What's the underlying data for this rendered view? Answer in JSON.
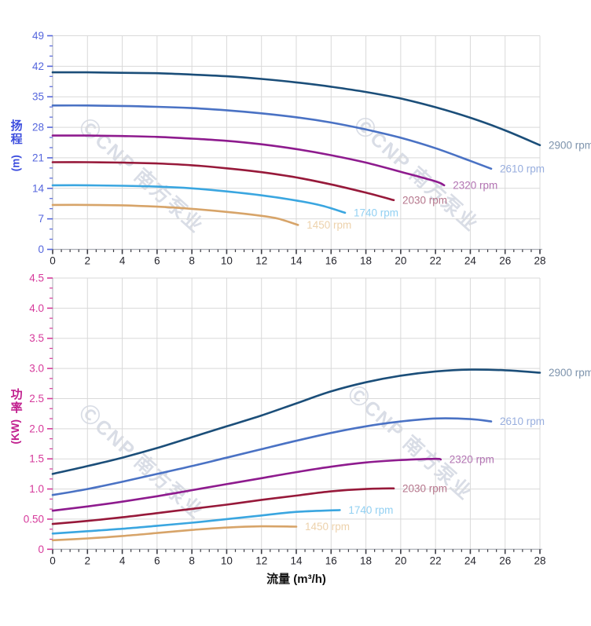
{
  "watermark": {
    "text": "ⒸCNP 南方泵业",
    "color": "rgba(164,175,196,0.42)"
  },
  "chart_data": [
    {
      "type": "line",
      "name": "head-vs-flow",
      "y_title": "扬程",
      "y_unit": "(m)",
      "xlabel": "",
      "xlim": [
        0,
        28
      ],
      "ylim": [
        0,
        49
      ],
      "x_major_step": 2,
      "y_major_step": 7,
      "grid": true,
      "legend_position": "curve-end-labels",
      "x_tick_labels": [
        "0",
        "2",
        "4",
        "6",
        "8",
        "10",
        "12",
        "14",
        "16",
        "18",
        "20",
        "22",
        "24",
        "26",
        "28"
      ],
      "y_tick_labels": [
        "0",
        "7",
        "14",
        "21",
        "28",
        "35",
        "42",
        "49"
      ],
      "y_tick_color": "#5566dd",
      "y_title_color": "#3d4ede",
      "x_tick_color": "#26262e",
      "series": [
        {
          "name": "2900 rpm",
          "color": "#1b4e79",
          "label_color": "#7d93ac",
          "points": [
            [
              0,
              40.6
            ],
            [
              2,
              40.6
            ],
            [
              4,
              40.5
            ],
            [
              6,
              40.4
            ],
            [
              8,
              40.1
            ],
            [
              10,
              39.7
            ],
            [
              12,
              39.1
            ],
            [
              14,
              38.3
            ],
            [
              16,
              37.3
            ],
            [
              18,
              36.1
            ],
            [
              20,
              34.6
            ],
            [
              22,
              32.6
            ],
            [
              24,
              30.2
            ],
            [
              26,
              27.3
            ],
            [
              28,
              23.9
            ]
          ]
        },
        {
          "name": "2610 rpm",
          "color": "#4a72c4",
          "label_color": "#98aede",
          "points": [
            [
              0,
              33.0
            ],
            [
              2,
              33.0
            ],
            [
              4,
              32.9
            ],
            [
              6,
              32.7
            ],
            [
              8,
              32.4
            ],
            [
              10,
              31.9
            ],
            [
              12,
              31.2
            ],
            [
              14,
              30.3
            ],
            [
              16,
              29.1
            ],
            [
              18,
              27.5
            ],
            [
              20,
              25.6
            ],
            [
              22,
              23.2
            ],
            [
              24,
              20.3
            ],
            [
              25.2,
              18.5
            ]
          ]
        },
        {
          "name": "2320 rpm",
          "color": "#8e1b8e",
          "label_color": "#b273b2",
          "points": [
            [
              0,
              26.1
            ],
            [
              2,
              26.1
            ],
            [
              4,
              26.0
            ],
            [
              6,
              25.8
            ],
            [
              8,
              25.4
            ],
            [
              10,
              24.9
            ],
            [
              12,
              24.1
            ],
            [
              14,
              23.0
            ],
            [
              16,
              21.6
            ],
            [
              18,
              19.9
            ],
            [
              20,
              17.8
            ],
            [
              22,
              15.6
            ],
            [
              22.5,
              14.7
            ]
          ]
        },
        {
          "name": "2030 rpm",
          "color": "#97193a",
          "label_color": "#b5768c",
          "points": [
            [
              0,
              20.0
            ],
            [
              2,
              20.0
            ],
            [
              4,
              19.9
            ],
            [
              6,
              19.7
            ],
            [
              8,
              19.3
            ],
            [
              10,
              18.6
            ],
            [
              12,
              17.7
            ],
            [
              14,
              16.5
            ],
            [
              16,
              14.9
            ],
            [
              18,
              13.0
            ],
            [
              19.6,
              11.3
            ]
          ]
        },
        {
          "name": "1740 rpm",
          "color": "#3aa6e0",
          "label_color": "#92d0f2",
          "points": [
            [
              0,
              14.7
            ],
            [
              2,
              14.7
            ],
            [
              4,
              14.6
            ],
            [
              6,
              14.4
            ],
            [
              8,
              14.0
            ],
            [
              10,
              13.3
            ],
            [
              12,
              12.4
            ],
            [
              14,
              11.2
            ],
            [
              15.5,
              10.0
            ],
            [
              16.8,
              8.4
            ]
          ]
        },
        {
          "name": "1450 rpm",
          "color": "#d7a469",
          "label_color": "#edd2ac",
          "points": [
            [
              0,
              10.2
            ],
            [
              2,
              10.2
            ],
            [
              4,
              10.1
            ],
            [
              6,
              9.8
            ],
            [
              8,
              9.3
            ],
            [
              10,
              8.6
            ],
            [
              12,
              7.7
            ],
            [
              13,
              7.0
            ],
            [
              14.1,
              5.6
            ]
          ]
        }
      ]
    },
    {
      "type": "line",
      "name": "power-vs-flow",
      "y_title": "功率",
      "y_unit": "(KW)",
      "xlabel": "流量 (m³/h)",
      "xlim": [
        0,
        28
      ],
      "ylim": [
        0,
        4.5
      ],
      "x_major_step": 2,
      "y_major_step": 0.5,
      "grid": true,
      "legend_position": "curve-end-labels",
      "x_tick_labels": [
        "0",
        "2",
        "4",
        "6",
        "8",
        "10",
        "12",
        "14",
        "16",
        "18",
        "20",
        "22",
        "24",
        "26",
        "28"
      ],
      "y_tick_labels": [
        "0",
        "0.50",
        "1.0",
        "1.5",
        "2.0",
        "2.5",
        "3.0",
        "3.5",
        "4.0",
        "4.5"
      ],
      "y_tick_color": "#d63a9b",
      "y_title_color": "#c11f8e",
      "x_tick_color": "#26262e",
      "series": [
        {
          "name": "2900 rpm",
          "color": "#1b4e79",
          "label_color": "#7d93ac",
          "points": [
            [
              0,
              1.25
            ],
            [
              2,
              1.38
            ],
            [
              4,
              1.52
            ],
            [
              6,
              1.68
            ],
            [
              8,
              1.86
            ],
            [
              10,
              2.04
            ],
            [
              12,
              2.22
            ],
            [
              14,
              2.42
            ],
            [
              16,
              2.62
            ],
            [
              18,
              2.77
            ],
            [
              20,
              2.88
            ],
            [
              22,
              2.95
            ],
            [
              24,
              2.98
            ],
            [
              26,
              2.97
            ],
            [
              28,
              2.93
            ]
          ]
        },
        {
          "name": "2610 rpm",
          "color": "#4a72c4",
          "label_color": "#98aede",
          "points": [
            [
              0,
              0.9
            ],
            [
              2,
              1.0
            ],
            [
              4,
              1.12
            ],
            [
              6,
              1.25
            ],
            [
              8,
              1.38
            ],
            [
              10,
              1.52
            ],
            [
              12,
              1.66
            ],
            [
              14,
              1.8
            ],
            [
              16,
              1.93
            ],
            [
              18,
              2.04
            ],
            [
              20,
              2.12
            ],
            [
              22,
              2.17
            ],
            [
              24,
              2.16
            ],
            [
              25.2,
              2.12
            ]
          ]
        },
        {
          "name": "2320 rpm",
          "color": "#8e1b8e",
          "label_color": "#b273b2",
          "points": [
            [
              0,
              0.64
            ],
            [
              2,
              0.71
            ],
            [
              4,
              0.79
            ],
            [
              6,
              0.88
            ],
            [
              8,
              0.98
            ],
            [
              10,
              1.08
            ],
            [
              12,
              1.18
            ],
            [
              14,
              1.28
            ],
            [
              16,
              1.37
            ],
            [
              18,
              1.44
            ],
            [
              20,
              1.48
            ],
            [
              22,
              1.5
            ],
            [
              22.3,
              1.49
            ]
          ]
        },
        {
          "name": "2030 rpm",
          "color": "#97193a",
          "label_color": "#b5768c",
          "points": [
            [
              0,
              0.42
            ],
            [
              2,
              0.47
            ],
            [
              4,
              0.53
            ],
            [
              6,
              0.6
            ],
            [
              8,
              0.67
            ],
            [
              10,
              0.74
            ],
            [
              12,
              0.82
            ],
            [
              14,
              0.89
            ],
            [
              16,
              0.96
            ],
            [
              18,
              1.0
            ],
            [
              19.6,
              1.01
            ]
          ]
        },
        {
          "name": "1740 rpm",
          "color": "#3aa6e0",
          "label_color": "#92d0f2",
          "points": [
            [
              0,
              0.26
            ],
            [
              2,
              0.3
            ],
            [
              4,
              0.34
            ],
            [
              6,
              0.39
            ],
            [
              8,
              0.44
            ],
            [
              10,
              0.5
            ],
            [
              12,
              0.56
            ],
            [
              14,
              0.62
            ],
            [
              16.5,
              0.65
            ]
          ]
        },
        {
          "name": "1450 rpm",
          "color": "#d7a469",
          "label_color": "#edd2ac",
          "points": [
            [
              0,
              0.15
            ],
            [
              2,
              0.18
            ],
            [
              4,
              0.22
            ],
            [
              6,
              0.27
            ],
            [
              8,
              0.32
            ],
            [
              10,
              0.36
            ],
            [
              12,
              0.38
            ],
            [
              14,
              0.375
            ]
          ]
        }
      ]
    }
  ]
}
